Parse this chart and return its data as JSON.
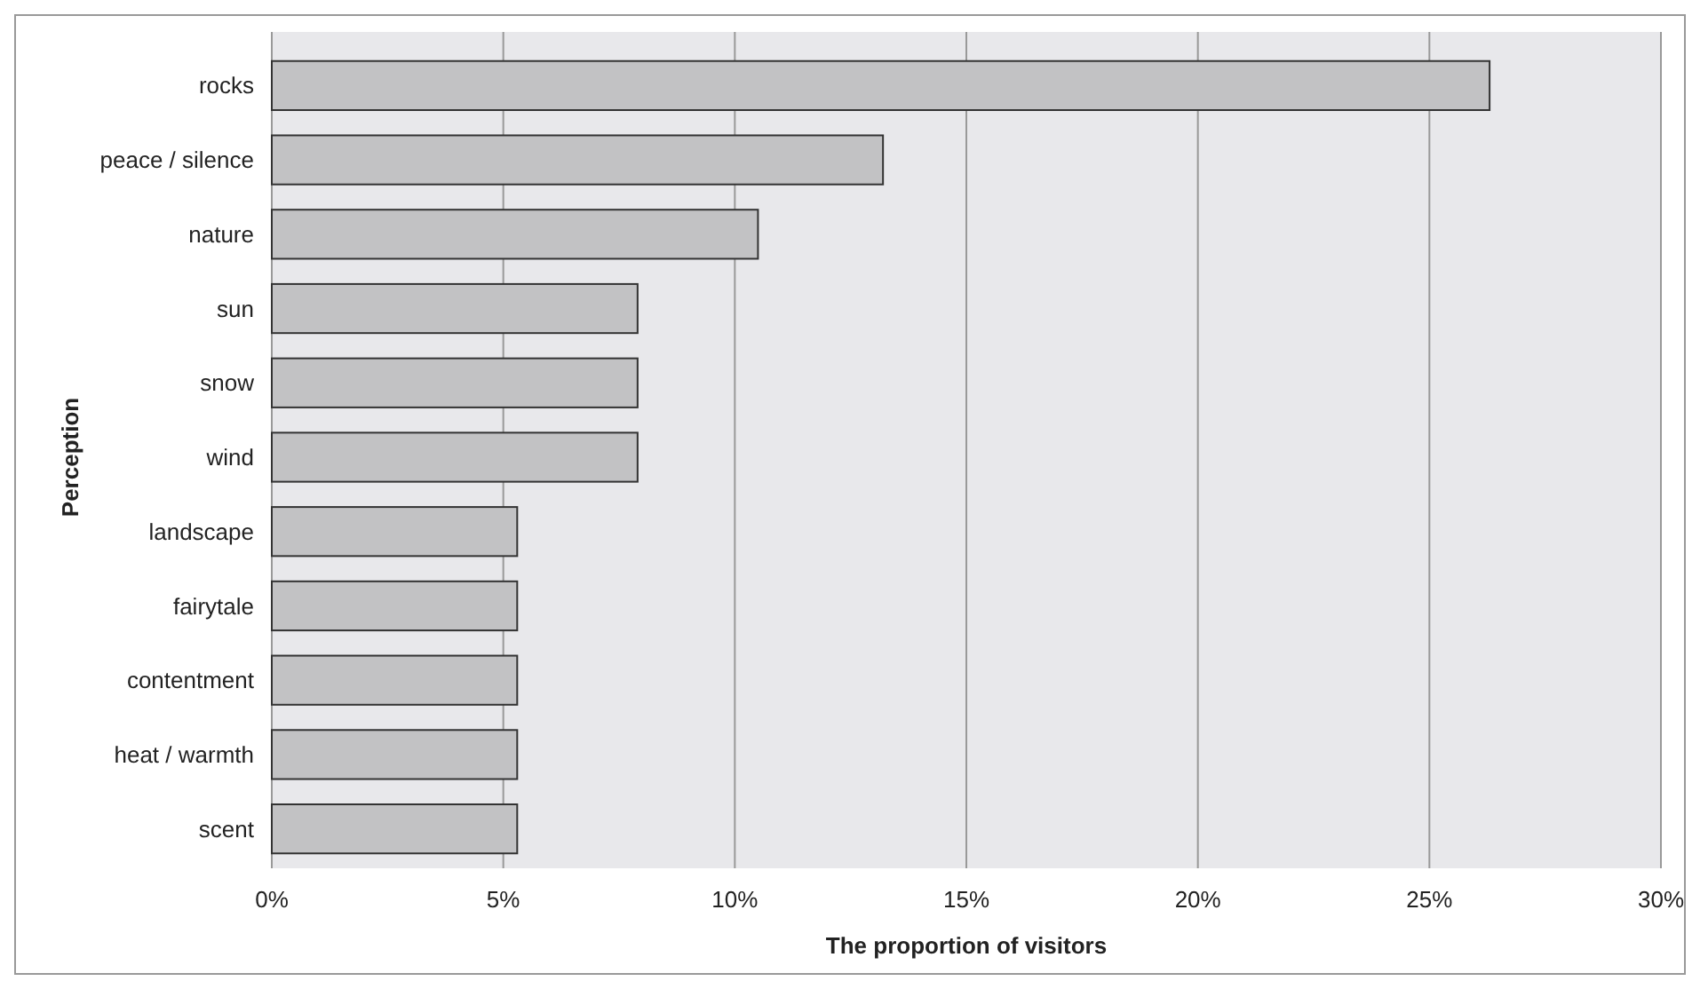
{
  "chart_data": {
    "type": "bar",
    "orientation": "horizontal",
    "xlabel": "The proportion of visitors",
    "ylabel": "Perception",
    "categories": [
      "rocks",
      "peace / silence",
      "nature",
      "sun",
      "snow",
      "wind",
      "landscape",
      "fairytale",
      "contentment",
      "heat / warmth",
      "scent"
    ],
    "values": [
      26.3,
      13.2,
      10.5,
      7.9,
      7.9,
      7.9,
      5.3,
      5.3,
      5.3,
      5.3,
      5.3
    ],
    "color": "#c2c2c4",
    "xlim": [
      0,
      30
    ],
    "xticks": [
      {
        "value": 0,
        "label": "0%"
      },
      {
        "value": 5,
        "label": "5%"
      },
      {
        "value": 10,
        "label": "10%"
      },
      {
        "value": 15,
        "label": "15%"
      },
      {
        "value": 20,
        "label": "20%"
      },
      {
        "value": 25,
        "label": "25%"
      },
      {
        "value": 30,
        "label": "30%"
      }
    ],
    "grid": "x"
  }
}
